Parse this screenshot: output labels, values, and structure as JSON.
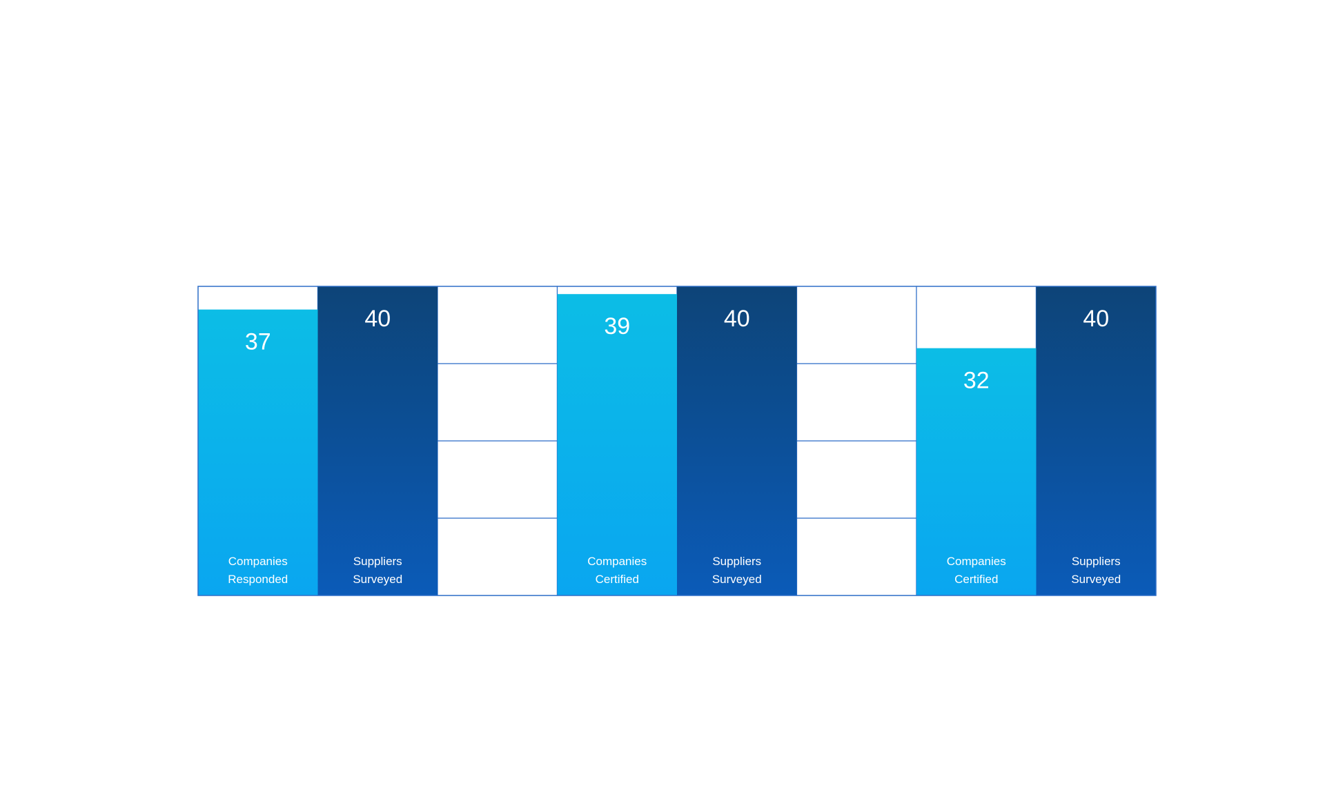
{
  "chart_data": {
    "type": "bar",
    "ylim": [
      0,
      40
    ],
    "grid": true,
    "colors": {
      "light_top": "#0CBDE6",
      "light_bottom": "#0AA6F0",
      "dark_top": "#0D4478",
      "dark_bottom": "#0B5BB8",
      "grid_line": "#2F6FC8",
      "text": "#FFFFFF"
    },
    "bars": [
      {
        "label": "Companies Responded",
        "label_lines": [
          "Companies",
          "Responded"
        ],
        "value": 37,
        "value_label": "37",
        "style": "light"
      },
      {
        "label": "Suppliers Surveyed",
        "label_lines": [
          "Suppliers",
          "Surveyed"
        ],
        "value": 40,
        "value_label": "40",
        "style": "dark"
      },
      {
        "label": "",
        "label_lines": [],
        "value": null,
        "value_label": "",
        "style": "grid"
      },
      {
        "label": "Companies Certified",
        "label_lines": [
          "Companies",
          "Certified"
        ],
        "value": 39,
        "value_label": "39",
        "style": "light"
      },
      {
        "label": "Suppliers Surveyed",
        "label_lines": [
          "Suppliers",
          "Surveyed"
        ],
        "value": 40,
        "value_label": "40",
        "style": "dark"
      },
      {
        "label": "",
        "label_lines": [],
        "value": null,
        "value_label": "",
        "style": "grid"
      },
      {
        "label": "Companies Certified",
        "label_lines": [
          "Companies",
          "Certified"
        ],
        "value": 32,
        "value_label": "32",
        "style": "light"
      },
      {
        "label": "Suppliers Surveyed",
        "label_lines": [
          "Suppliers",
          "Surveyed"
        ],
        "value": 40,
        "value_label": "40",
        "style": "dark"
      }
    ]
  }
}
